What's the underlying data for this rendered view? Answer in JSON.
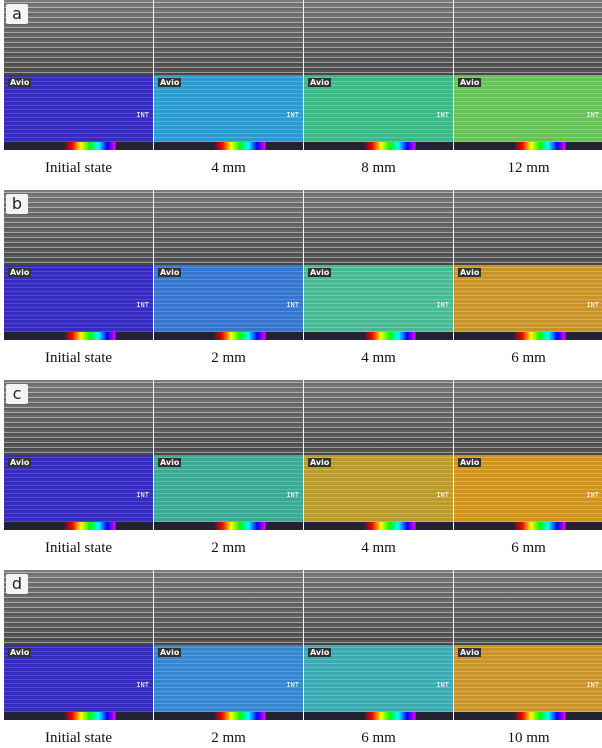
{
  "overlay": {
    "brand": "Avio",
    "mode": "INT"
  },
  "panels": [
    {
      "label": "a",
      "captions": [
        "Initial  state",
        "4  mm",
        "8  mm",
        "12  mm"
      ]
    },
    {
      "label": "b",
      "captions": [
        "Initial  state",
        "2  mm",
        "4  mm",
        "6  mm"
      ]
    },
    {
      "label": "c",
      "captions": [
        "Initial  state",
        "2  mm",
        "4  mm",
        "6  mm"
      ]
    },
    {
      "label": "d",
      "captions": [
        "Initial  state",
        "2  mm",
        "6  mm",
        "10  mm"
      ]
    }
  ]
}
